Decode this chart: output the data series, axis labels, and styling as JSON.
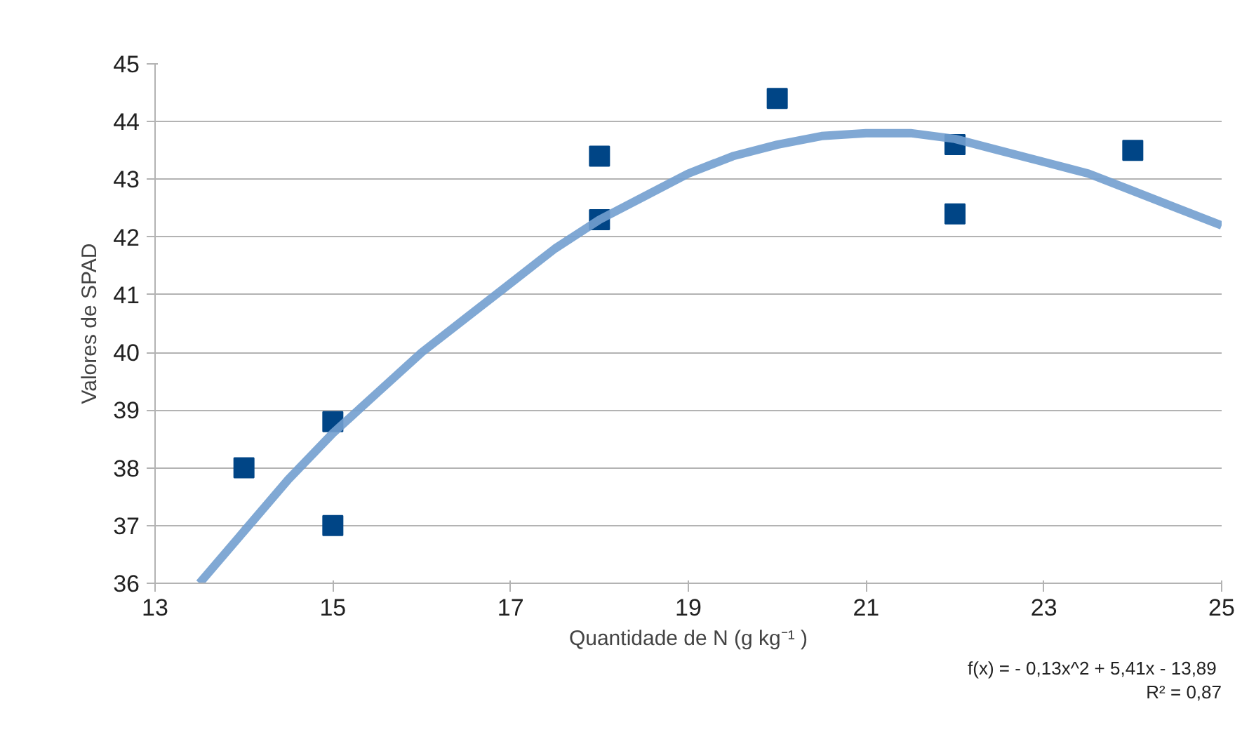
{
  "chart_data": {
    "type": "scatter",
    "xlabel": "Quantidade de N (g kg⁻¹ )",
    "ylabel": "Valores de SPAD",
    "xlim": [
      13,
      25
    ],
    "ylim": [
      36,
      45
    ],
    "xticks": [
      13,
      15,
      17,
      19,
      21,
      23,
      25
    ],
    "yticks": [
      36,
      37,
      38,
      39,
      40,
      41,
      42,
      43,
      44,
      45
    ],
    "grid": "y",
    "series": [
      {
        "marker": "square",
        "color": "#004586",
        "x": [
          14,
          15,
          15,
          18,
          18,
          20,
          22,
          22,
          24
        ],
        "values": [
          38,
          38.8,
          37,
          43.4,
          42.3,
          44.4,
          43.6,
          42.4,
          43.5
        ]
      },
      {
        "type": "line",
        "color": "#729fcf",
        "x": [
          13.5,
          14,
          14.5,
          15,
          15.5,
          16,
          16.5,
          17,
          17.5,
          18,
          18.5,
          19,
          19.5,
          20,
          20.5,
          21,
          21.5,
          22,
          22.5,
          23,
          23.5,
          24,
          24.5,
          25
        ],
        "values": [
          36,
          36.9,
          37.8,
          38.6,
          39.3,
          40,
          40.6,
          41.2,
          41.8,
          42.3,
          42.7,
          43.1,
          43.4,
          43.6,
          43.75,
          43.8,
          43.8,
          43.7,
          43.5,
          43.3,
          43.1,
          42.8,
          42.5,
          42.2
        ]
      }
    ],
    "annotations": [
      "f(x) =  - 0,13x^2 + 5,41x - 13,89",
      "R² = 0,87"
    ]
  }
}
